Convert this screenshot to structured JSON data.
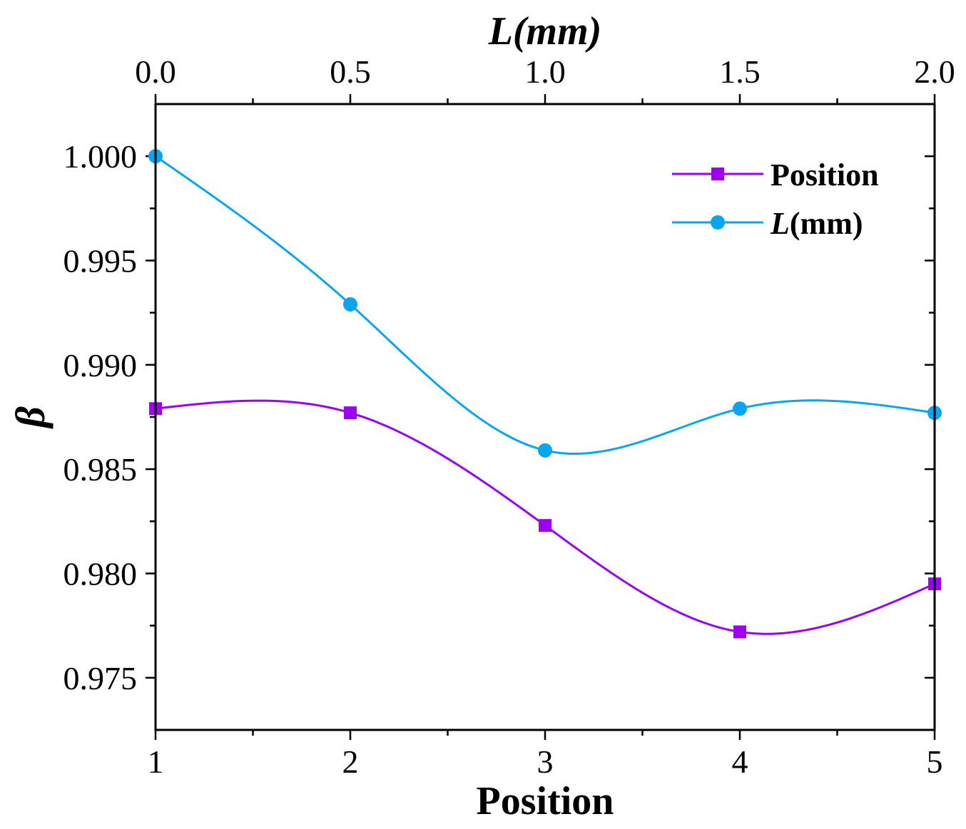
{
  "chart_data": {
    "type": "line",
    "ylabel": "β",
    "ylim": [
      0.9725,
      1.0025
    ],
    "yticks": [
      0.975,
      0.98,
      0.985,
      0.99,
      0.995,
      1.0
    ],
    "ytick_labels": [
      "0.975",
      "0.980",
      "0.985",
      "0.990",
      "0.995",
      "1.000"
    ],
    "bottom_axis": {
      "label": "Position",
      "range": [
        1,
        5
      ],
      "ticks": [
        1,
        2,
        3,
        4,
        5
      ],
      "tick_labels": [
        "1",
        "2",
        "3",
        "4",
        "5"
      ]
    },
    "top_axis": {
      "label": "L(mm)",
      "range": [
        0.0,
        2.0
      ],
      "ticks": [
        0.0,
        0.5,
        1.0,
        1.5,
        2.0
      ],
      "tick_labels": [
        "0.0",
        "0.5",
        "1.0",
        "1.5",
        "2.0"
      ]
    },
    "series": [
      {
        "name": "Position",
        "axis": "bottom",
        "marker": "square",
        "color": "#9b00f0",
        "x": [
          1,
          2,
          3,
          4,
          5
        ],
        "y": [
          0.9879,
          0.9877,
          0.9823,
          0.9772,
          0.9795
        ]
      },
      {
        "name": "L(mm)",
        "axis": "top",
        "marker": "circle",
        "color": "#0aa5ef",
        "x": [
          0.0,
          0.5,
          1.0,
          1.5,
          2.0
        ],
        "y": [
          1.0,
          0.9929,
          0.9859,
          0.9879,
          0.9877
        ]
      }
    ],
    "legend": {
      "position": "top-right",
      "entries": [
        {
          "prefix": "Position",
          "suffix": ""
        },
        {
          "prefix": "L",
          "suffix": "(mm)"
        }
      ]
    }
  }
}
